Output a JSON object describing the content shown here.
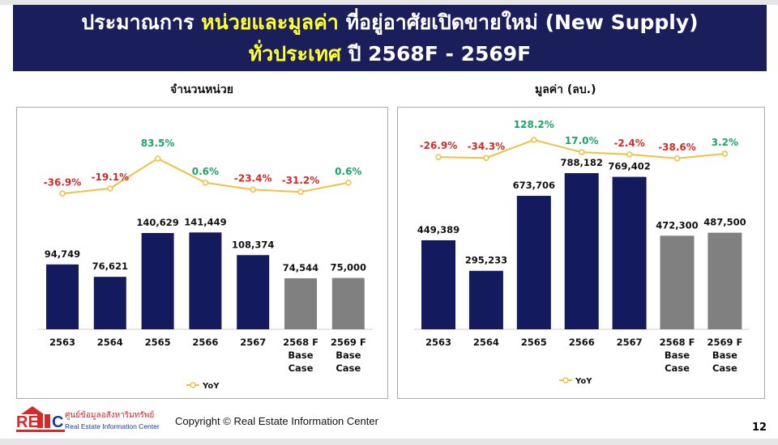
{
  "header": {
    "title_part1": "ประมาณการ ",
    "title_highlight": "หน่วยและมูลค่า",
    "title_part2": " ที่อยู่อาศัยเปิดขายใหม่ (New Supply)",
    "line2_highlight": "ทั่วประเทศ",
    "line2_rest": " ปี 2568F - 2569F"
  },
  "colors": {
    "banner": "#1a1f5c",
    "highlight": "#ffff33",
    "actual_bar": "#141a5e",
    "forecast_bar": "#808080",
    "yoy_line": "#f0c040",
    "negative": "#d42a2a",
    "positive": "#1aa56a"
  },
  "chart_data": [
    {
      "type": "bar+line",
      "title": "จำนวนหน่วย",
      "categories": [
        "2563",
        "2564",
        "2565",
        "2566",
        "2567",
        "2568 F\nBase\nCase",
        "2569 F\nBase\nCase"
      ],
      "values": [
        94749,
        76621,
        140629,
        141449,
        108374,
        74544,
        75000
      ],
      "value_labels": [
        "94,749",
        "76,621",
        "140,629",
        "141,449",
        "108,374",
        "74,544",
        "75,000"
      ],
      "forecast": [
        false,
        false,
        false,
        false,
        false,
        true,
        true
      ],
      "yoy": [
        -36.9,
        -19.1,
        83.5,
        0.6,
        -23.4,
        -31.2,
        0.6
      ],
      "yoy_labels": [
        "-36.9%",
        "-19.1%",
        "83.5%",
        "0.6%",
        "-23.4%",
        "-31.2%",
        "0.6%"
      ],
      "legend": "YoY",
      "legend_position": "bottom"
    },
    {
      "type": "bar+line",
      "title": "มูลค่า (ลบ.)",
      "categories": [
        "2563",
        "2564",
        "2565",
        "2566",
        "2567",
        "2568 F\nBase\nCase",
        "2569 F\nBase\nCase"
      ],
      "values": [
        449389,
        295233,
        673706,
        788182,
        769402,
        472300,
        487500
      ],
      "value_labels": [
        "449,389",
        "295,233",
        "673,706",
        "788,182",
        "769,402",
        "472,300",
        "487,500"
      ],
      "forecast": [
        false,
        false,
        false,
        false,
        false,
        true,
        true
      ],
      "yoy": [
        -26.9,
        -34.3,
        128.2,
        17.0,
        -2.4,
        -38.6,
        3.2
      ],
      "yoy_labels": [
        "-26.9%",
        "-34.3%",
        "128.2%",
        "17.0%",
        "-2.4%",
        "-38.6%",
        "3.2%"
      ],
      "legend": "YoY",
      "legend_position": "bottom"
    }
  ],
  "footer": {
    "logo_text": "REIC",
    "logo_thai": "ศูนย์ข้อมูลอสังหาริมทรัพย์",
    "logo_en": "Real Estate Information Center",
    "copyright": "Copyright © Real Estate Information Center",
    "page": "12"
  }
}
